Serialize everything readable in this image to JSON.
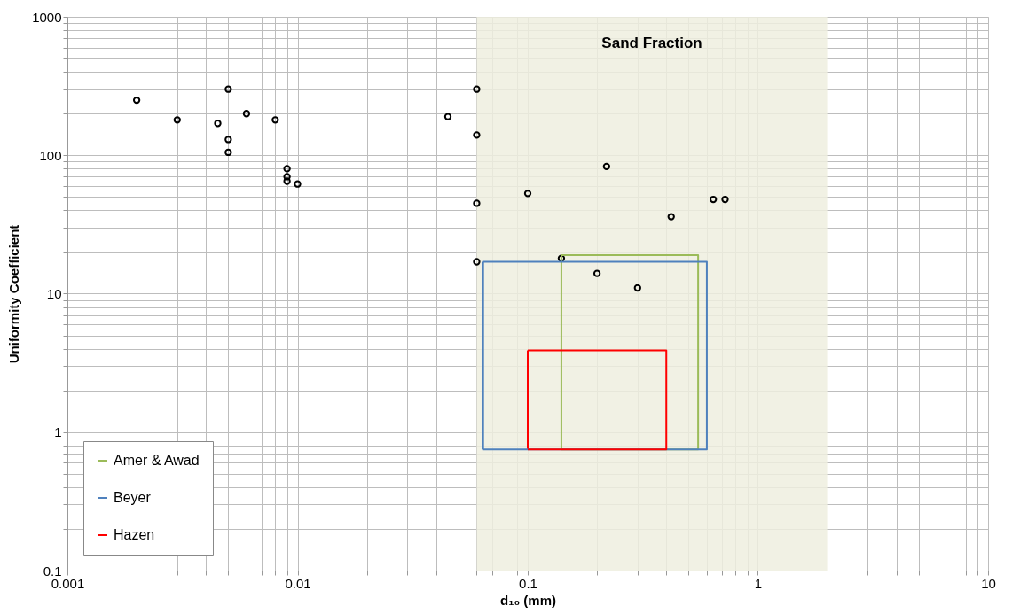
{
  "chart_data": {
    "type": "scatter",
    "xlabel": "d₁₀ (mm)",
    "ylabel": "Uniformity Coefficient",
    "log": "xy",
    "grid": true,
    "legend": "bottom left",
    "xlim": [
      0.001,
      10
    ],
    "ylim": [
      0.1,
      1000
    ],
    "xticks": [
      0.001,
      0.01,
      0.1,
      1,
      10
    ],
    "yticks": [
      0.1,
      1,
      10,
      100,
      1000
    ],
    "bands": [
      {
        "axis": "x",
        "from": 0.06,
        "to": 2,
        "label": "Sand Fraction",
        "color": "#eeeedf"
      }
    ],
    "series": [
      {
        "marker": "circle",
        "color": "#000000",
        "x": [
          0.002,
          0.003,
          0.0045,
          0.005,
          0.005,
          0.005,
          0.006,
          0.008,
          0.009,
          0.009,
          0.009,
          0.01,
          0.045,
          0.06,
          0.06,
          0.06,
          0.06,
          0.1,
          0.22,
          0.42,
          0.64,
          0.72,
          0.14,
          0.2,
          0.3
        ],
        "values": [
          250,
          180,
          170,
          300,
          130,
          105,
          200,
          180,
          80,
          70,
          65,
          62,
          190,
          300,
          140,
          45,
          17,
          53,
          83,
          36,
          48,
          48,
          18,
          14,
          11
        ]
      },
      {
        "type": "line",
        "marker": "none",
        "name": "Amer & Awad",
        "color": "#9bbb59",
        "x": [
          0.14,
          0.55,
          0.55,
          0.14
        ],
        "values": [
          0.75,
          0.75,
          19,
          19
        ]
      },
      {
        "type": "line",
        "marker": "none",
        "color": "#9bbb59",
        "x": [
          0.14,
          0.14
        ],
        "values": [
          19,
          0.75
        ]
      },
      {
        "type": "line",
        "marker": "none",
        "name": "Beyer",
        "color": "#4f81bd",
        "x": [
          0.064,
          0.6,
          0.6,
          0.064
        ],
        "values": [
          0.75,
          0.75,
          17,
          17
        ]
      },
      {
        "type": "line",
        "marker": "none",
        "color": "#4f81bd",
        "x": [
          0.064,
          0.064
        ],
        "values": [
          17,
          0.75
        ]
      },
      {
        "type": "line",
        "marker": "none",
        "name": "Hazen",
        "color": "#ff0000",
        "x": [
          0.1,
          0.4,
          0.4,
          0.1
        ],
        "values": [
          0.75,
          0.75,
          3.9,
          3.9
        ]
      },
      {
        "type": "line",
        "marker": "none",
        "color": "#ff0000",
        "x": [
          0.1,
          0.1
        ],
        "values": [
          3.9,
          0.75
        ]
      }
    ]
  }
}
